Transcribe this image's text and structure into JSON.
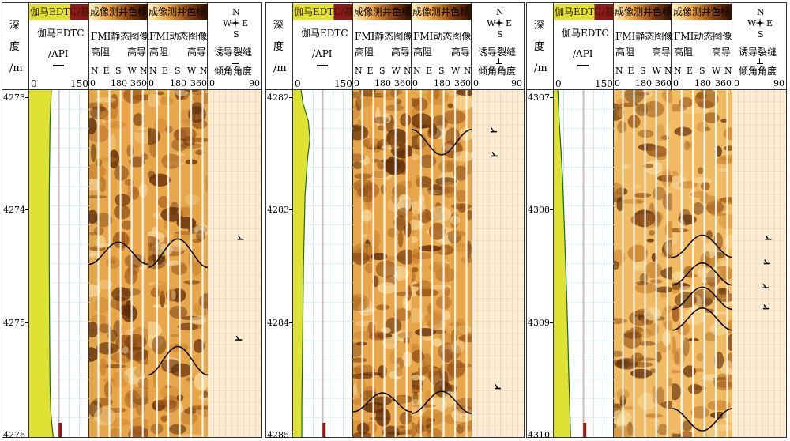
{
  "headers": {
    "depth_label": [
      "深",
      "度",
      "/m"
    ],
    "gamma_caption": "伽马EDTC/基线",
    "gamma_name": "伽马EDTC",
    "gamma_unit": "/API",
    "gamma_min": "0",
    "gamma_max": "150",
    "static_caption": "成像测井色标",
    "static_name": "FMI静态图像",
    "dynamic_caption": "成像测井色标",
    "dynamic_name": "FMI动态图像",
    "res_low": "高阻",
    "res_high": "高导",
    "azimuths": [
      "N",
      "E",
      "S",
      "W",
      "N"
    ],
    "az_ticks": [
      "0",
      "180",
      "360"
    ],
    "compass": [
      "N",
      "W",
      "E",
      "S"
    ],
    "fracture_name": "诱导裂缝",
    "dip_name": "倾角角度",
    "dip_min": "0",
    "dip_max": "90"
  },
  "colors": {
    "gamma_fill": "#e0e233",
    "gamma_line": "#1d6b22",
    "baseline": "#8b1a1a",
    "image_light": "#f3c46b",
    "image_dark": "#5b2a06",
    "dip_bg": "#fbecd6",
    "fracture_mark": "#000000"
  },
  "panels": [
    {
      "depth_ticks": [
        "4273",
        "4274",
        "4275",
        "4276"
      ],
      "gamma_curve": [
        [
          0,
          55
        ],
        [
          0.1,
          52
        ],
        [
          0.3,
          50
        ],
        [
          0.5,
          50
        ],
        [
          0.7,
          51
        ],
        [
          0.85,
          52
        ],
        [
          0.93,
          54
        ],
        [
          0.98,
          58
        ],
        [
          1,
          60
        ]
      ],
      "fractures": [
        {
          "y": 0.43,
          "dip": 55
        },
        {
          "y": 0.72,
          "dip": 52
        }
      ]
    },
    {
      "depth_ticks": [
        "4282",
        "4283",
        "4284",
        "4285"
      ],
      "gamma_curve": [
        [
          0,
          20
        ],
        [
          0.04,
          25
        ],
        [
          0.09,
          38
        ],
        [
          0.14,
          42
        ],
        [
          0.2,
          36
        ],
        [
          0.3,
          30
        ],
        [
          0.5,
          26
        ],
        [
          0.7,
          24
        ],
        [
          0.9,
          22
        ],
        [
          1,
          22
        ]
      ],
      "fractures": [
        {
          "y": 0.12,
          "dip": 38
        },
        {
          "y": 0.19,
          "dip": 40
        },
        {
          "y": 0.86,
          "dip": 45
        }
      ]
    },
    {
      "depth_ticks": [
        "4307",
        "4308",
        "4309",
        "4310"
      ],
      "gamma_curve": [
        [
          0,
          10
        ],
        [
          0.1,
          14
        ],
        [
          0.25,
          22
        ],
        [
          0.45,
          28
        ],
        [
          0.58,
          32
        ],
        [
          0.7,
          35
        ],
        [
          0.8,
          37
        ],
        [
          0.92,
          40
        ],
        [
          1,
          42
        ]
      ],
      "fractures": [
        {
          "y": 0.43,
          "dip": 60
        },
        {
          "y": 0.5,
          "dip": 58
        },
        {
          "y": 0.57,
          "dip": 56
        },
        {
          "y": 0.63,
          "dip": 57
        }
      ]
    }
  ]
}
